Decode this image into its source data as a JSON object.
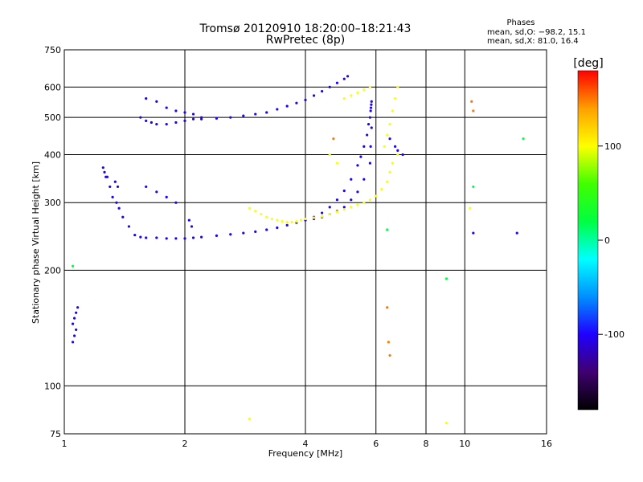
{
  "chart_data": {
    "type": "scatter",
    "title": "Tromsø 20120910 18:20:00–18:21:43",
    "subtitle": "RwPretec (8p)",
    "xlabel": "Frequency [MHz]",
    "ylabel": "Stationary phase Virtual Height [km]",
    "x_scale": "log",
    "y_scale": "log",
    "xlim": [
      1,
      16
    ],
    "ylim": [
      75,
      750
    ],
    "x_ticks": [
      1,
      2,
      4,
      6,
      8,
      10,
      16
    ],
    "y_ticks": [
      75,
      100,
      200,
      300,
      400,
      500,
      600,
      750
    ],
    "x_gridlines": [
      2,
      4,
      6,
      8,
      10
    ],
    "y_gridlines": [
      100,
      200,
      300,
      400,
      500,
      600
    ],
    "grid": true,
    "phase_stats": {
      "title": "Phases",
      "line1": "mean, sd,O: −98.2, 15.1",
      "line2": "mean, sd,X:  81.0, 16.4"
    },
    "colorbar": {
      "label": "[deg]",
      "range": [
        -180,
        180
      ],
      "ticks": [
        100,
        0,
        -100
      ],
      "colors": [
        "#000000",
        "#400070",
        "#2000ff",
        "#0090ff",
        "#00ffff",
        "#00ff40",
        "#40ff00",
        "#ffff00",
        "#ffa000",
        "#ff0000"
      ]
    },
    "series": [
      {
        "name": "",
        "phase": -100,
        "x": [
          1.05,
          1.06,
          1.07,
          1.05,
          1.06,
          1.07,
          1.08,
          1.25,
          1.27,
          1.3,
          1.32,
          1.35,
          1.37,
          1.4,
          1.45,
          1.5,
          1.55,
          1.6,
          1.7,
          1.8,
          1.9,
          2.0,
          2.1,
          2.2,
          2.4,
          2.6,
          2.8,
          3.0,
          3.2,
          3.4,
          3.6,
          3.8,
          4.0,
          4.2,
          4.4,
          4.6,
          4.8,
          5.0,
          5.2,
          5.4,
          5.5,
          5.6,
          5.7,
          5.75,
          5.8,
          5.82,
          5.83,
          5.84,
          5.85,
          5.85,
          5.82,
          5.8,
          5.6,
          5.4,
          5.2,
          5.0,
          4.8,
          4.6,
          4.4,
          4.2,
          1.55,
          1.6,
          1.65,
          1.7,
          1.8,
          1.9,
          2.0,
          2.1,
          2.2,
          2.4,
          2.6,
          2.8,
          3.0,
          3.2,
          3.4,
          3.6,
          3.8,
          4.0,
          4.2,
          4.4,
          4.6,
          4.8,
          5.0,
          5.1,
          1.6,
          1.7,
          1.8,
          1.9,
          2.0,
          2.1,
          2.2,
          1.26,
          1.28,
          1.34,
          1.36,
          1.6,
          1.7,
          1.8,
          1.9,
          2.05,
          2.08,
          6.5,
          6.7,
          6.8,
          7.0,
          10.5,
          13.5
        ],
        "y": [
          145,
          150,
          155,
          130,
          135,
          140,
          160,
          370,
          350,
          330,
          310,
          300,
          290,
          275,
          260,
          247,
          244,
          243,
          243,
          242,
          242,
          242,
          243,
          244,
          246,
          248,
          250,
          252,
          255,
          258,
          262,
          266,
          270,
          275,
          282,
          292,
          305,
          322,
          345,
          375,
          395,
          420,
          450,
          480,
          500,
          520,
          530,
          540,
          550,
          470,
          420,
          380,
          345,
          320,
          305,
          292,
          285,
          280,
          275,
          272,
          500,
          490,
          485,
          480,
          480,
          485,
          490,
          495,
          495,
          497,
          500,
          505,
          510,
          515,
          525,
          535,
          545,
          555,
          570,
          585,
          600,
          615,
          630,
          640,
          560,
          550,
          530,
          520,
          515,
          510,
          500,
          360,
          350,
          340,
          330,
          330,
          320,
          310,
          300,
          270,
          260,
          440,
          420,
          410,
          400,
          250,
          250
        ]
      },
      {
        "name": "",
        "phase": 100,
        "x": [
          2.9,
          3.0,
          3.1,
          3.2,
          3.3,
          3.4,
          3.5,
          3.6,
          3.7,
          3.8,
          3.9,
          4.0,
          4.2,
          4.4,
          4.6,
          4.8,
          5.0,
          5.2,
          5.4,
          5.6,
          5.8,
          6.0,
          6.2,
          6.4,
          6.5,
          6.6,
          6.8,
          5.0,
          5.2,
          5.4,
          5.6,
          5.8,
          6.3,
          6.4,
          6.5,
          6.6,
          6.7,
          6.8,
          4.6,
          4.8,
          10.3,
          2.9,
          9.0
        ],
        "y": [
          290,
          285,
          280,
          275,
          272,
          270,
          268,
          267,
          267,
          268,
          270,
          272,
          274,
          276,
          280,
          284,
          288,
          292,
          296,
          300,
          305,
          312,
          325,
          340,
          360,
          380,
          400,
          560,
          570,
          580,
          590,
          600,
          420,
          450,
          480,
          520,
          560,
          600,
          400,
          380,
          290,
          82,
          80
        ]
      },
      {
        "name": "",
        "phase": 150,
        "x": [
          6.4,
          6.45,
          6.5,
          10.4,
          10.5,
          4.7
        ],
        "y": [
          160,
          130,
          120,
          550,
          520,
          440
        ]
      },
      {
        "name": "",
        "phase": 20,
        "x": [
          9.0,
          14.0,
          10.5,
          6.4,
          1.05
        ],
        "y": [
          190,
          440,
          330,
          255,
          205
        ]
      }
    ]
  }
}
